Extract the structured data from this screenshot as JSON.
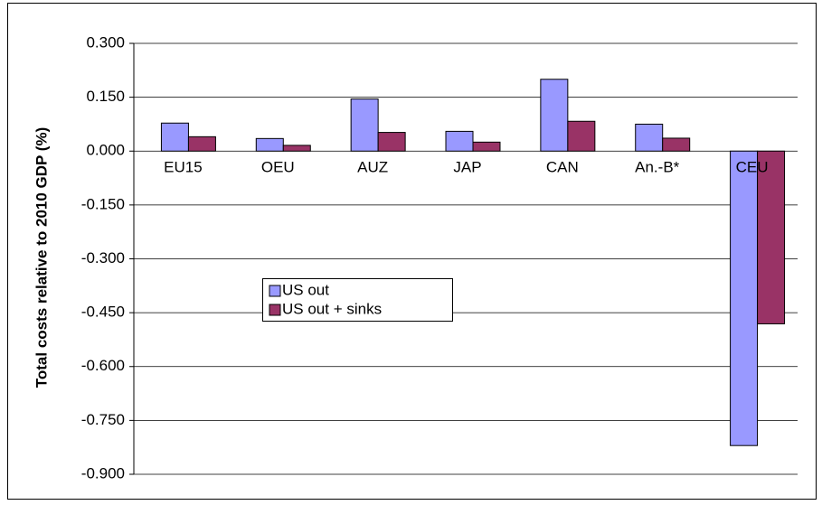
{
  "chart_data": {
    "type": "bar",
    "y_label": "Total costs relative to 2010 GDP (%)",
    "categories": [
      "EU15",
      "OEU",
      "AUZ",
      "JAP",
      "CAN",
      "An.-B*",
      "CEU"
    ],
    "series": [
      {
        "name": "US out",
        "color": "#9999ff",
        "values": [
          0.078,
          0.035,
          0.145,
          0.055,
          0.2,
          0.075,
          -0.82
        ]
      },
      {
        "name": "US out + sinks",
        "color": "#993366",
        "values": [
          0.04,
          0.016,
          0.052,
          0.025,
          0.083,
          0.036,
          -0.481
        ]
      }
    ],
    "ylim": [
      -0.9,
      0.3
    ],
    "yticks": [
      {
        "value": 0.3,
        "label": "0.300"
      },
      {
        "value": 0.15,
        "label": "0.150"
      },
      {
        "value": 0,
        "label": "0.000"
      },
      {
        "value": -0.15,
        "label": "-0.150"
      },
      {
        "value": -0.3,
        "label": "-0.300"
      },
      {
        "value": -0.45,
        "label": "-0.450"
      },
      {
        "value": -0.6,
        "label": "-0.600"
      },
      {
        "value": -0.75,
        "label": "-0.750"
      },
      {
        "value": -0.9,
        "label": "-0.900"
      }
    ],
    "grid": true
  }
}
